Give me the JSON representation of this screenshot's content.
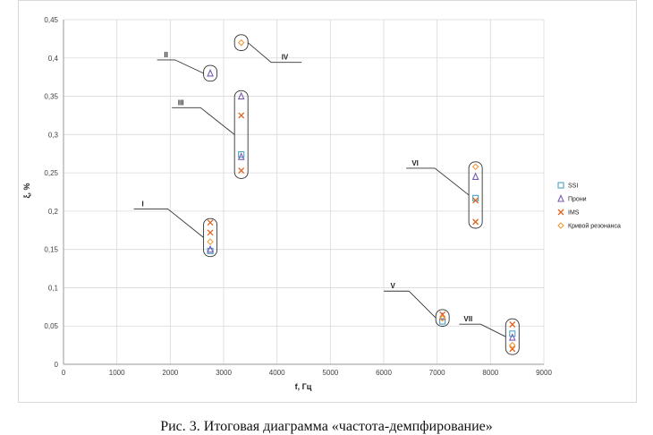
{
  "caption": "Рис. 3. Итоговая диаграмма «частота-демпфирование»",
  "chart_data": {
    "type": "scatter",
    "xlabel": "f, Гц",
    "ylabel": "ξ, %",
    "xlim": [
      0,
      9000
    ],
    "ylim": [
      0,
      0.45
    ],
    "x_ticks": [
      "0",
      "1000",
      "2000",
      "3000",
      "4000",
      "5000",
      "6000",
      "7000",
      "8000",
      "9000"
    ],
    "y_ticks": [
      "0",
      "0,05",
      "0,1",
      "0,15",
      "0,2",
      "0,25",
      "0,3",
      "0,35",
      "0,4",
      "0,45"
    ],
    "grid": true,
    "legend_position": "right",
    "series": [
      {
        "name": "SSI",
        "marker": "square",
        "color": "#4aa3c8",
        "points": [
          [
            2750,
            0.148
          ],
          [
            3330,
            0.274
          ],
          [
            7720,
            0.217
          ],
          [
            7100,
            0.056
          ],
          [
            8410,
            0.04
          ]
        ]
      },
      {
        "name": "Прони",
        "marker": "triangle",
        "color": "#7a5ab0",
        "points": [
          [
            2750,
            0.15
          ],
          [
            2750,
            0.38
          ],
          [
            3330,
            0.35
          ],
          [
            3330,
            0.271
          ],
          [
            7720,
            0.245
          ],
          [
            7100,
            0.062
          ],
          [
            8410,
            0.035
          ]
        ]
      },
      {
        "name": "IMS",
        "marker": "x",
        "color": "#e0641e",
        "points": [
          [
            2750,
            0.185
          ],
          [
            2750,
            0.172
          ],
          [
            3330,
            0.325
          ],
          [
            3330,
            0.253
          ],
          [
            7720,
            0.214
          ],
          [
            7720,
            0.186
          ],
          [
            7100,
            0.065
          ],
          [
            8410,
            0.052
          ],
          [
            8410,
            0.02
          ]
        ]
      },
      {
        "name": "Кривой резонанса",
        "marker": "diamond",
        "color": "#f39a3a",
        "points": [
          [
            2750,
            0.16
          ],
          [
            3330,
            0.42
          ],
          [
            7720,
            0.258
          ],
          [
            7100,
            0.06
          ],
          [
            8410,
            0.025
          ]
        ]
      }
    ],
    "annotations": [
      {
        "label": "I",
        "x": 2750,
        "y_range": [
          0.143,
          0.188
        ]
      },
      {
        "label": "II",
        "x": 2750,
        "y_range": [
          0.372,
          0.388
        ]
      },
      {
        "label": "III",
        "x": 3330,
        "y_range": [
          0.245,
          0.355
        ]
      },
      {
        "label": "IV",
        "x": 3330,
        "y_range": [
          0.412,
          0.428
        ]
      },
      {
        "label": "V",
        "x": 7100,
        "y_range": [
          0.052,
          0.069
        ]
      },
      {
        "label": "VI",
        "x": 7720,
        "y_range": [
          0.18,
          0.262
        ]
      },
      {
        "label": "VII",
        "x": 8410,
        "y_range": [
          0.015,
          0.057
        ]
      }
    ]
  }
}
